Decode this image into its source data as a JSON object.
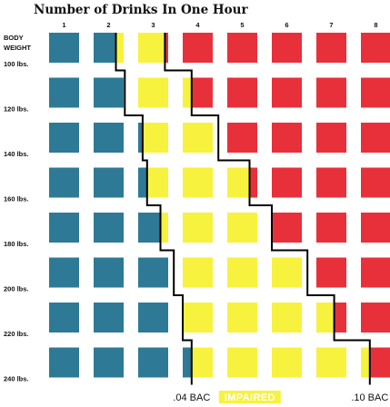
{
  "chart_data": {
    "type": "heatmap",
    "title": "Number of Drinks In One Hour",
    "ylabel": "BODY WEIGHT",
    "x": [
      "1",
      "2",
      "3",
      "4",
      "5",
      "6",
      "7",
      "8"
    ],
    "y": [
      "100 lbs.",
      "120 lbs.",
      "140 lbs.",
      "160 lbs.",
      "180 lbs.",
      "200 lbs.",
      "220 lbs.",
      "240 lbs."
    ],
    "zones": [
      "below .04 BAC",
      "IMPAIRED",
      "above .10 BAC"
    ],
    "colors": {
      "low": "#2e7a96",
      "impaired": "#f7f23e",
      "high": "#e8303b",
      "line": "#000000"
    },
    "boundary_04": [
      1.5,
      1.7,
      2.1,
      2.2,
      2.5,
      2.8,
      3.0,
      3.2
    ],
    "boundary_10": [
      2.6,
      3.2,
      3.8,
      4.5,
      5.0,
      5.8,
      6.4,
      7.2
    ],
    "annotations": [
      ".04 BAC",
      "IMPAIRED",
      ".10 BAC"
    ]
  }
}
